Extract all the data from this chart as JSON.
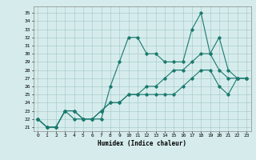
{
  "title": "",
  "xlabel": "Humidex (Indice chaleur)",
  "ylabel": "",
  "background_color": "#d6ecec",
  "grid_color": "#aacccc",
  "line_color": "#1a7a6e",
  "x_ticks": [
    0,
    1,
    2,
    3,
    4,
    5,
    6,
    7,
    8,
    9,
    10,
    11,
    12,
    13,
    14,
    15,
    16,
    17,
    18,
    19,
    20,
    21,
    22,
    23
  ],
  "y_ticks": [
    21,
    22,
    23,
    24,
    25,
    26,
    27,
    28,
    29,
    30,
    31,
    32,
    33,
    34,
    35
  ],
  "ylim": [
    20.5,
    35.8
  ],
  "xlim": [
    -0.5,
    23.5
  ],
  "series1": [
    22,
    21,
    21,
    23,
    23,
    22,
    22,
    22,
    26,
    29,
    32,
    32,
    30,
    30,
    29,
    29,
    29,
    33,
    35,
    30,
    32,
    28,
    27,
    27
  ],
  "series2": [
    22,
    21,
    21,
    23,
    23,
    22,
    22,
    23,
    24,
    24,
    25,
    25,
    26,
    26,
    27,
    28,
    28,
    29,
    30,
    30,
    28,
    27,
    27,
    27
  ],
  "series3": [
    22,
    21,
    21,
    23,
    22,
    22,
    22,
    23,
    24,
    24,
    25,
    25,
    25,
    25,
    25,
    25,
    26,
    27,
    28,
    28,
    26,
    25,
    27,
    27
  ]
}
